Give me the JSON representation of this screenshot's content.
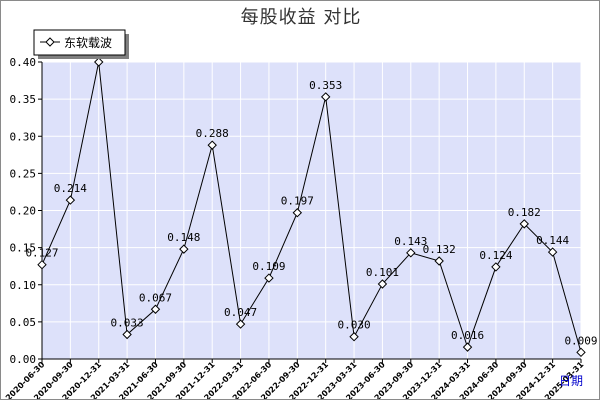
{
  "chart_data": {
    "type": "line",
    "title": "每股收益 对比",
    "xlabel": "日期",
    "ylabel": "",
    "ylim": [
      0,
      0.4
    ],
    "yticks": [
      "0.00",
      "0.05",
      "0.10",
      "0.15",
      "0.20",
      "0.25",
      "0.30",
      "0.35",
      "0.40"
    ],
    "categories": [
      "2020-06-30",
      "2020-09-30",
      "2020-12-31",
      "2021-03-31",
      "2021-06-30",
      "2021-09-30",
      "2021-12-31",
      "2022-03-31",
      "2022-06-30",
      "2022-09-30",
      "2022-12-31",
      "2023-03-31",
      "2023-06-30",
      "2023-09-30",
      "2023-12-31",
      "2024-03-31",
      "2024-06-30",
      "2024-09-30",
      "2024-12-31",
      "2025-03-31"
    ],
    "series": [
      {
        "name": "东软载波",
        "values": [
          0.127,
          0.214,
          0.4,
          0.033,
          0.067,
          0.148,
          0.288,
          0.047,
          0.109,
          0.197,
          0.353,
          0.03,
          0.101,
          0.143,
          0.132,
          0.016,
          0.124,
          0.182,
          0.144,
          0.009
        ],
        "labels": [
          "0.127",
          "0.214",
          "",
          "0.033",
          "0.067",
          "0.148",
          "0.288",
          "0.047",
          "0.109",
          "0.197",
          "0.353",
          "0.030",
          "0.101",
          "0.143",
          "0.132",
          "0.016",
          "0.124",
          "0.182",
          "0.144",
          "0.009"
        ]
      }
    ],
    "grid": true,
    "legend_position": "top-left",
    "colors": {
      "plot_background": "#dde1fa",
      "grid": "#ffffff",
      "line": "#000000",
      "marker_fill": "#ffffff",
      "xlabel": "#0000cc"
    }
  }
}
